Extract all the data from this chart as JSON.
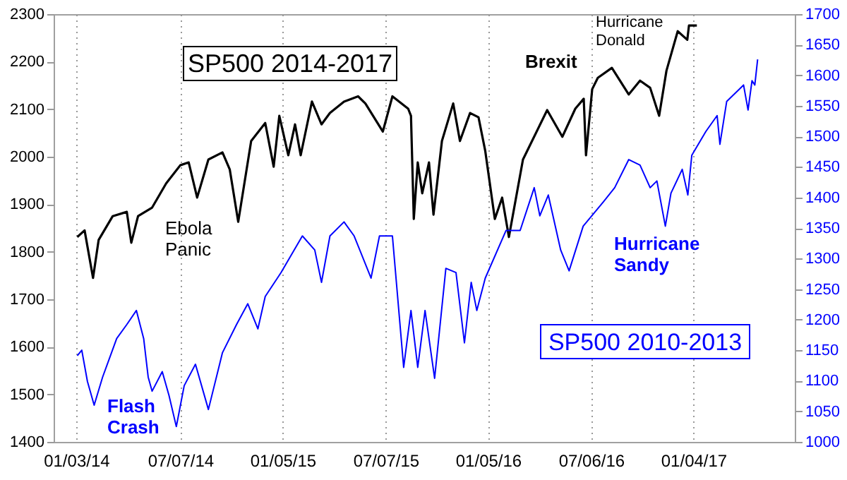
{
  "chart_data": {
    "type": "line",
    "annotations": [
      "Ebola Panic",
      "Flash Crash",
      "Brexit",
      "Hurricane Donald",
      "Hurricane Sandy"
    ],
    "xlim": [
      "2013-11-24",
      "2017-07-03"
    ],
    "xticks": [
      {
        "value": "2014-01-03",
        "label": "01/03/14"
      },
      {
        "value": "2014-07-07",
        "label": "07/07/14"
      },
      {
        "value": "2015-01-05",
        "label": "01/05/15"
      },
      {
        "value": "2015-07-07",
        "label": "07/07/15"
      },
      {
        "value": "2016-01-05",
        "label": "01/05/16"
      },
      {
        "value": "2016-07-06",
        "label": "07/06/16"
      },
      {
        "value": "2017-01-04",
        "label": "01/04/17"
      }
    ],
    "ylim": [
      1400,
      2300
    ],
    "yticks": [
      1400,
      1500,
      1600,
      1700,
      1800,
      1900,
      2000,
      2100,
      2200,
      2300
    ],
    "y2lim": [
      1000,
      1700
    ],
    "y2ticks": [
      1000,
      1050,
      1100,
      1150,
      1200,
      1250,
      1300,
      1350,
      1400,
      1450,
      1500,
      1550,
      1600,
      1650,
      1700
    ],
    "grid": "x",
    "legend": false,
    "series": [
      {
        "name": "SP500 2014-2017",
        "color": "#000000",
        "x": [
          "2014-01-05",
          "2014-01-18",
          "2014-02-02",
          "2014-02-12",
          "2014-03-09",
          "2014-04-03",
          "2014-04-11",
          "2014-04-23",
          "2014-05-18",
          "2014-06-12",
          "2014-07-07",
          "2014-07-22",
          "2014-08-06",
          "2014-08-26",
          "2014-09-20",
          "2014-10-03",
          "2014-10-18",
          "2014-11-10",
          "2014-12-05",
          "2014-12-20",
          "2014-12-30",
          "2015-01-15",
          "2015-01-27",
          "2015-02-06",
          "2015-02-26",
          "2015-03-15",
          "2015-03-30",
          "2015-04-24",
          "2015-05-19",
          "2015-06-01",
          "2015-07-02",
          "2015-07-19",
          "2015-08-16",
          "2015-08-21",
          "2015-08-26",
          "2015-09-02",
          "2015-09-10",
          "2015-09-22",
          "2015-09-30",
          "2015-10-15",
          "2015-11-04",
          "2015-11-16",
          "2015-12-04",
          "2015-12-19",
          "2015-12-31",
          "2016-01-17",
          "2016-01-30",
          "2016-02-11",
          "2016-03-07",
          "2016-04-19",
          "2016-05-16",
          "2016-06-08",
          "2016-06-23",
          "2016-06-27",
          "2016-07-08",
          "2016-07-18",
          "2016-08-12",
          "2016-09-11",
          "2016-10-01",
          "2016-10-19",
          "2016-11-04",
          "2016-11-17",
          "2016-12-07",
          "2016-12-24",
          "2016-12-27",
          "2017-01-10"
        ],
        "values": [
          1831,
          1845,
          1745,
          1825,
          1875,
          1884,
          1819,
          1875,
          1893,
          1944,
          1982,
          1988,
          1914,
          1994,
          2009,
          1973,
          1863,
          2033,
          2071,
          1979,
          2086,
          2003,
          2068,
          2003,
          2116,
          2068,
          2092,
          2116,
          2127,
          2112,
          2053,
          2127,
          2101,
          2086,
          1869,
          1988,
          1923,
          1988,
          1878,
          2033,
          2112,
          2033,
          2092,
          2083,
          2012,
          1869,
          1914,
          1831,
          1994,
          2098,
          2042,
          2101,
          2122,
          2003,
          2142,
          2166,
          2187,
          2131,
          2160,
          2145,
          2086,
          2181,
          2264,
          2246,
          2276,
          2276
        ]
      },
      {
        "name": "SP500 2010-2013",
        "color": "#0000ff",
        "axis": "y2",
        "x": [
          "2014-01-05",
          "2014-01-13",
          "2014-01-23",
          "2014-02-04",
          "2014-02-19",
          "2014-03-16",
          "2014-04-03",
          "2014-04-20",
          "2014-05-03",
          "2014-05-11",
          "2014-05-18",
          "2014-06-05",
          "2014-06-17",
          "2014-06-30",
          "2014-07-14",
          "2014-08-03",
          "2014-08-26",
          "2014-09-20",
          "2014-10-15",
          "2014-11-04",
          "2014-11-22",
          "2014-12-05",
          "2015-01-02",
          "2015-02-09",
          "2015-03-03",
          "2015-03-15",
          "2015-03-30",
          "2015-04-24",
          "2015-05-12",
          "2015-06-11",
          "2015-06-26",
          "2015-07-19",
          "2015-08-08",
          "2015-08-21",
          "2015-09-02",
          "2015-09-15",
          "2015-10-02",
          "2015-10-22",
          "2015-11-09",
          "2015-11-24",
          "2015-12-06",
          "2015-12-16",
          "2015-12-31",
          "2016-02-06",
          "2016-03-02",
          "2016-03-27",
          "2016-04-06",
          "2016-04-21",
          "2016-05-13",
          "2016-05-28",
          "2016-06-22",
          "2016-07-28",
          "2016-08-17",
          "2016-09-11",
          "2016-10-01",
          "2016-10-19",
          "2016-10-31",
          "2016-11-15",
          "2016-11-25",
          "2016-12-15",
          "2016-12-25",
          "2017-01-01",
          "2017-01-26",
          "2017-02-15",
          "2017-02-20",
          "2017-03-04",
          "2017-04-03",
          "2017-04-11",
          "2017-04-18",
          "2017-04-23",
          "2017-04-28"
        ],
        "values": [
          1141,
          1150,
          1099,
          1060,
          1106,
          1169,
          1192,
          1215,
          1169,
          1106,
          1083,
          1115,
          1076,
          1025,
          1092,
          1127,
          1053,
          1146,
          1192,
          1226,
          1185,
          1238,
          1277,
          1337,
          1314,
          1261,
          1337,
          1360,
          1337,
          1268,
          1337,
          1337,
          1122,
          1215,
          1122,
          1215,
          1104,
          1284,
          1277,
          1162,
          1261,
          1215,
          1268,
          1346,
          1346,
          1416,
          1370,
          1404,
          1314,
          1280,
          1353,
          1393,
          1416,
          1462,
          1453,
          1416,
          1427,
          1353,
          1407,
          1446,
          1404,
          1469,
          1508,
          1534,
          1487,
          1557,
          1584,
          1543,
          1591,
          1584,
          1626
        ]
      }
    ]
  }
}
